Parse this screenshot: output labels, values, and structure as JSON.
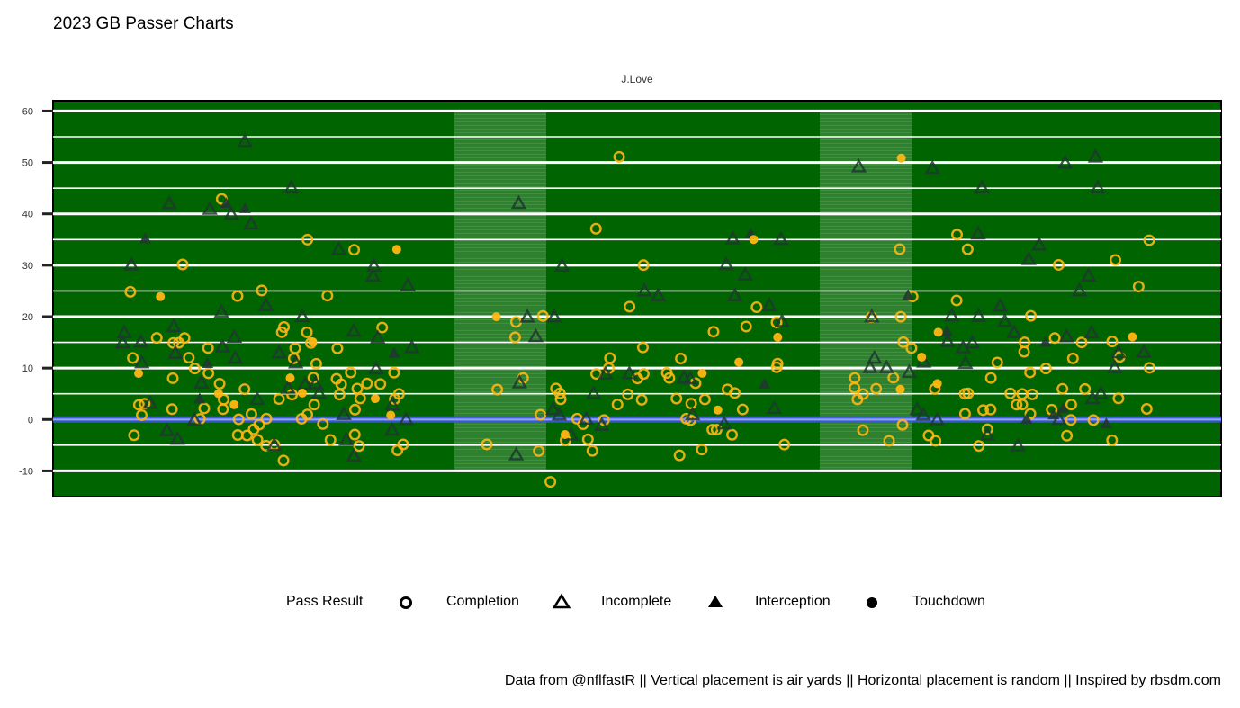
{
  "title": "2023 GB Passer Charts",
  "caption": "Data from @nflfastR || Vertical placement is air yards || Horizontal placement is random || Inspired by rbsdm.com",
  "colors": {
    "field": "#006400",
    "yard_line": "#ffffff",
    "line_of_scrimmage": "#4055f0",
    "completion": "#ffb612",
    "incomplete": "#203731",
    "interception": "#203731",
    "touchdown": "#ffb612",
    "legend_key": "#000000"
  },
  "legend": {
    "title": "Pass Result",
    "items": [
      {
        "label": "Completion",
        "icon": "circle-outline-icon"
      },
      {
        "label": "Incomplete",
        "icon": "triangle-outline-icon"
      },
      {
        "label": "Interception",
        "icon": "triangle-filled-icon"
      },
      {
        "label": "Touchdown",
        "icon": "circle-filled-icon"
      }
    ]
  },
  "chart_data": {
    "type": "scatter",
    "facet_label": "J.Love",
    "title": "2023 GB Passer Charts",
    "xlabel": "",
    "ylabel": "",
    "ylim": [
      -15,
      62
    ],
    "yticks": [
      60,
      50,
      40,
      30,
      20,
      10,
      0,
      -10
    ],
    "grid": true,
    "legend_position": "bottom",
    "x_note": "horizontal placement is random",
    "series": [
      {
        "name": "Completion",
        "y": [
          35,
          33,
          31,
          22,
          18,
          15,
          14,
          12,
          11,
          10,
          9,
          8,
          8,
          7,
          6,
          5,
          5,
          4,
          4,
          3,
          3,
          2,
          2,
          1,
          0,
          -1,
          -3,
          -3,
          -5,
          -6,
          -7,
          -8,
          20,
          20,
          15,
          12,
          9,
          7,
          5,
          3,
          1,
          0,
          -1,
          -2,
          36,
          30,
          25,
          16,
          12,
          10,
          9,
          8,
          6,
          4,
          2,
          1,
          0,
          -2,
          -3,
          -5,
          -12,
          35,
          33,
          30,
          24,
          18,
          16,
          10,
          9,
          7,
          6,
          5,
          3,
          2,
          0,
          -1,
          -4,
          -5,
          -6,
          22,
          16,
          10,
          8,
          6,
          5,
          1,
          0,
          -3,
          -5,
          26,
          24,
          17,
          15,
          14,
          12,
          9,
          7,
          5,
          4,
          2,
          0,
          -1,
          -4,
          51,
          33,
          20,
          19,
          15,
          14,
          12,
          11,
          10,
          8,
          6,
          5,
          4,
          3,
          -3,
          -4,
          23,
          19,
          17,
          16,
          15,
          14,
          13,
          8,
          6,
          5,
          4,
          2,
          -3,
          -4,
          30,
          18,
          15,
          9,
          6,
          5,
          4,
          3,
          1,
          0,
          -2,
          -4,
          -6,
          43,
          25,
          11,
          8,
          6,
          5,
          5,
          4,
          3,
          2,
          1,
          0,
          -4,
          -5,
          24,
          20,
          17,
          14,
          12,
          9,
          8,
          7,
          6,
          5,
          4,
          3,
          2,
          0,
          -2,
          -4,
          -5,
          -6,
          37,
          15,
          12,
          8,
          6,
          4,
          2,
          0,
          -2,
          -3,
          -5
        ]
      },
      {
        "name": "Incomplete",
        "y": [
          51,
          49,
          45,
          42,
          38,
          35,
          33,
          31,
          30,
          28,
          26,
          25,
          24,
          24,
          22,
          21,
          20,
          20,
          20,
          19,
          17,
          17,
          17,
          16,
          15,
          15,
          14,
          13,
          12,
          11,
          11,
          10,
          10,
          9,
          7,
          5,
          3,
          2,
          1,
          0,
          -1,
          -4,
          -5,
          -7,
          54,
          45,
          36,
          34,
          30,
          25,
          20,
          16,
          14,
          13,
          10,
          9,
          7,
          5,
          1,
          0,
          -3,
          -4,
          -7,
          50,
          49,
          45,
          40,
          30,
          22,
          19,
          16,
          13,
          11,
          8,
          4,
          2,
          0,
          -5,
          41,
          35,
          30,
          28,
          28,
          22,
          20,
          20,
          18,
          15,
          15,
          14,
          13,
          12,
          11,
          10,
          8,
          7,
          6,
          4,
          2,
          1,
          0,
          -1,
          -2,
          -3,
          42,
          17,
          16,
          9,
          7,
          5,
          3,
          1,
          0,
          -2
        ]
      },
      {
        "name": "Interception",
        "y": [
          35,
          24,
          15,
          36,
          17,
          42,
          41,
          13,
          11,
          7,
          4,
          2,
          1,
          0,
          -1
        ]
      },
      {
        "name": "Touchdown",
        "y": [
          35,
          24,
          16,
          11,
          6,
          5,
          2,
          1,
          51,
          33,
          15,
          9,
          8,
          5,
          -3,
          16,
          9,
          20,
          17,
          12,
          7,
          4,
          3
        ]
      }
    ]
  }
}
